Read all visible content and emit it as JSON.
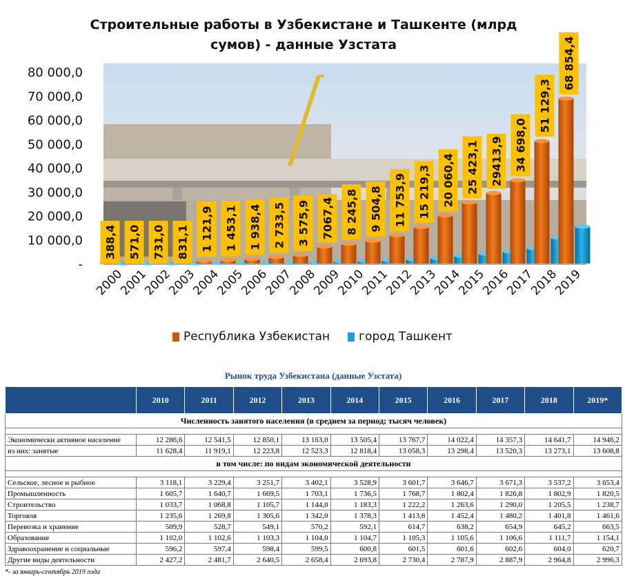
{
  "chart_data": {
    "type": "bar",
    "title": "Строительные работы в Узбекистане и Ташкенте (млрд сумов) - данные Узстата",
    "categories": [
      "2000",
      "2001",
      "2002",
      "2003",
      "2004",
      "2005",
      "2006",
      "2007",
      "2008",
      "2009",
      "2010",
      "2011",
      "2012",
      "2013",
      "2014",
      "2015",
      "2016",
      "2017",
      "2018",
      "2019"
    ],
    "series": [
      {
        "name": "Республика Узбекистан",
        "color": "#e36c0a",
        "values": [
          388.4,
          571.0,
          731.0,
          831.1,
          1121.9,
          1453.1,
          1938.4,
          2733.5,
          3575.9,
          7067.4,
          8245.8,
          9504.8,
          11753.9,
          15219.3,
          20060.4,
          25423.1,
          29413.9,
          34698.0,
          51129.3,
          68854.4
        ],
        "labels": [
          "388,4",
          "571,0",
          "731,0",
          "831,1",
          "1 121,9",
          "1 453,1",
          "1 938,4",
          "2 733,5",
          "3 575,9",
          "7067,4",
          "8 245,8",
          "9 504,8",
          "11 753,9",
          "15 219,3",
          "20 060,4",
          "25 423,1",
          "29413,9",
          "34 698,0",
          "51 129,3",
          "68 854,4"
        ]
      },
      {
        "name": "город Ташкент",
        "color": "#19a0d8",
        "values": [
          60,
          90,
          110,
          130,
          180,
          230,
          300,
          420,
          560,
          1000,
          1200,
          1450,
          1800,
          2300,
          3200,
          4100,
          5000,
          6400,
          10800,
          15400
        ]
      }
    ],
    "yticks": [
      "-",
      "10 000,0",
      "20 000,0",
      "30 000,0",
      "40 000,0",
      "50 000,0",
      "60 000,0",
      "70 000,0",
      "80 000,0"
    ],
    "ylim": [
      0,
      80000
    ],
    "legend_position": "bottom"
  },
  "table": {
    "title": "Рынок труда Узбекистана (данные Узстата)",
    "years": [
      "2010",
      "2011",
      "2012",
      "2013",
      "2014",
      "2015",
      "2016",
      "2017",
      "2018",
      "2019*"
    ],
    "section1": "Численность занятого населения (в среднем за период; тысяч человек)",
    "section2": "в том числе: по видам экономической деятельности",
    "rows1": [
      {
        "label": "Экономически активное население",
        "values": [
          "12 286,6",
          "12 541,5",
          "12 850,1",
          "13 163,0",
          "13 505,4",
          "13 767,7",
          "14 022,4",
          "14 357,3",
          "14 641,7",
          "14 946,2"
        ]
      },
      {
        "label": "из них: занятые",
        "values": [
          "11 628,4",
          "11 919,1",
          "12 223,8",
          "12 523,3",
          "12 818,4",
          "13 058,3",
          "13 298,4",
          "13 520,3",
          "13 273,1",
          "13 608,8"
        ]
      }
    ],
    "rows2": [
      {
        "label": "Сельское, лесное и рыбное",
        "values": [
          "3 118,1",
          "3 229,4",
          "3 251,7",
          "3 402,1",
          "3 528,9",
          "3 601,7",
          "3 646,7",
          "3 671,3",
          "3 537,2",
          "3 653,4"
        ]
      },
      {
        "label": "Промышленность",
        "values": [
          "1 605,7",
          "1 640,7",
          "1 669,5",
          "1 703,1",
          "1 736,5",
          "1 768,7",
          "1 802,4",
          "1 826,8",
          "1 802,9",
          "1 820,5"
        ]
      },
      {
        "label": "Строительство",
        "values": [
          "1 033,7",
          "1 068,8",
          "1 105,7",
          "1 144,0",
          "1 183,3",
          "1 222,2",
          "1 263,6",
          "1 290,0",
          "1 205,5",
          "1 238,7"
        ]
      },
      {
        "label": "Торговля",
        "values": [
          "1 235,6",
          "1 269,8",
          "1 305,6",
          "1 342,0",
          "1 378,3",
          "1 413,8",
          "1 452,4",
          "1 480,2",
          "1 401,8",
          "1 461,6"
        ]
      },
      {
        "label": "Перевозка и хранение",
        "values": [
          "509,9",
          "528,7",
          "549,1",
          "570,2",
          "592,1",
          "614,7",
          "638,2",
          "654,9",
          "645,2",
          "663,5"
        ]
      },
      {
        "label": "Образование",
        "values": [
          "1 102,0",
          "1 102,6",
          "1 103,3",
          "1 104,0",
          "1 104,7",
          "1 105,3",
          "1 105,6",
          "1 106,6",
          "1 111,7",
          "1 154,1"
        ]
      },
      {
        "label": "Здравоохранение и социальные",
        "values": [
          "596,2",
          "597,4",
          "598,4",
          "599,5",
          "600,8",
          "601,5",
          "601,6",
          "602,6",
          "604,0",
          "620,7"
        ]
      },
      {
        "label": "Другие виды деятельности",
        "values": [
          "2 427,2",
          "2 481,7",
          "2 640,5",
          "2 658,4",
          "2 693,8",
          "2 730,4",
          "2 787,9",
          "2 887,9",
          "2 964,8",
          "2 996,3"
        ]
      }
    ],
    "footnote": "*- за январь-сентябрь 2019 года"
  }
}
